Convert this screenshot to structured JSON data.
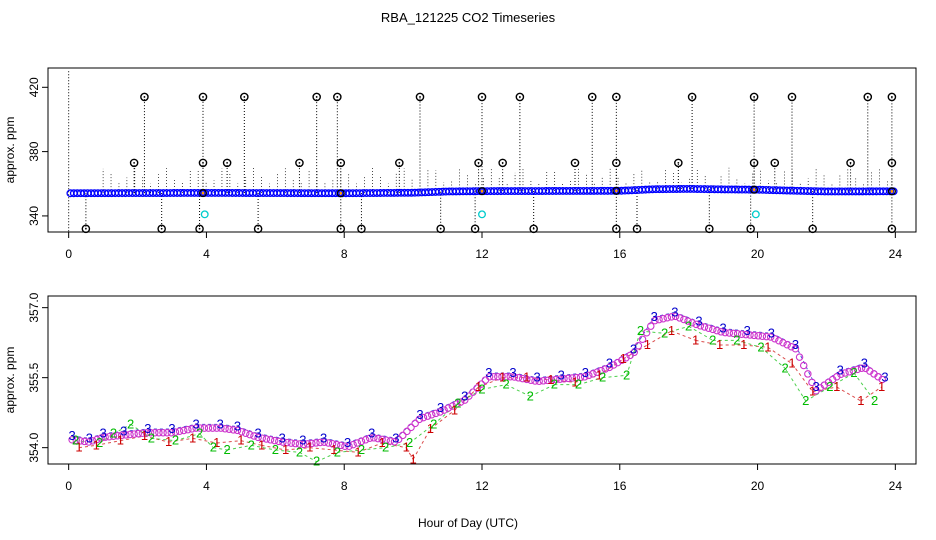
{
  "chart_data": [
    {
      "type": "scatter",
      "panel": "top",
      "title": "RBA_121225  CO2 Timeseries",
      "xlabel": "",
      "ylabel": "approx. ppm",
      "xlim": [
        -0.6,
        24.6
      ],
      "ylim": [
        330,
        432
      ],
      "xticks": [
        0,
        4,
        8,
        12,
        16,
        20,
        24
      ],
      "yticks": [
        340,
        380,
        420
      ],
      "baseline_points": {
        "x_start": 0.05,
        "x_end": 23.95,
        "step": 0.1,
        "profile_x": [
          0,
          4,
          8,
          10,
          11,
          12,
          14,
          16,
          17,
          18,
          19,
          20,
          21,
          22,
          24
        ],
        "profile_y": [
          354.1,
          354.3,
          354.1,
          354.4,
          355.2,
          355.4,
          355.5,
          355.6,
          356.6,
          356.8,
          356.5,
          356.3,
          355.7,
          355.2,
          355.3
        ],
        "color": "#0000ff"
      },
      "spike_high_x": [
        2.2,
        3.9,
        5.1,
        7.2,
        7.8,
        10.2,
        12.0,
        13.1,
        15.2,
        15.9,
        18.1,
        19.9,
        21.0,
        23.2,
        23.9
      ],
      "spike_high_y": 414,
      "spike_mid_x": [
        1.9,
        3.9,
        4.6,
        6.7,
        7.9,
        9.6,
        11.9,
        12.6,
        14.7,
        15.9,
        17.7,
        19.9,
        20.5,
        22.7,
        23.9
      ],
      "spike_mid_y": 373,
      "spike_low_x": [
        0.5,
        2.7,
        3.8,
        5.5,
        7.9,
        8.5,
        10.8,
        11.8,
        13.5,
        15.9,
        16.5,
        18.6,
        19.8,
        21.6,
        23.9
      ],
      "spike_low_y": 332,
      "cyan_points": {
        "x": [
          3.95,
          12.0,
          19.95
        ],
        "y": [
          341,
          341,
          341
        ],
        "color": "#00cccc"
      },
      "orange_points": {
        "x": [
          3.9,
          7.9,
          12.0,
          15.9,
          19.9,
          23.9
        ],
        "y": [
          354.2,
          354.1,
          355.4,
          355.6,
          356.3,
          355.3
        ]
      }
    },
    {
      "type": "scatter",
      "panel": "bottom",
      "xlabel": "Hour of Day (UTC)",
      "ylabel": "approx. ppm",
      "xlim": [
        -0.6,
        24.6
      ],
      "ylim": [
        353.65,
        357.25
      ],
      "xticks": [
        0,
        4,
        8,
        12,
        16,
        20,
        24
      ],
      "yticks": [
        354.0,
        355.5,
        357.0
      ],
      "ytick_labels": [
        "354.0",
        "355.5",
        "357.0"
      ],
      "series": [
        {
          "name": "1",
          "marker": "1",
          "color": "#cc0000",
          "offset": -0.07,
          "x": [
            0.3,
            0.8,
            1.5,
            2.2,
            2.9,
            3.6,
            4.3,
            5.0,
            5.6,
            6.3,
            7.0,
            7.7,
            8.4,
            9.1,
            9.8,
            10.0,
            10.5,
            11.2,
            11.9,
            12.6,
            13.3,
            14.0,
            14.7,
            15.4,
            16.1,
            16.8,
            17.5,
            18.2,
            18.9,
            19.6,
            20.3,
            21.0,
            21.6,
            22.3,
            23.0,
            23.6
          ],
          "y": [
            354.0,
            354.05,
            354.15,
            354.25,
            354.12,
            354.2,
            354.1,
            354.15,
            354.05,
            353.95,
            354.0,
            353.95,
            353.9,
            354.1,
            354.0,
            353.75,
            354.4,
            354.8,
            355.3,
            355.5,
            355.5,
            355.45,
            355.4,
            355.55,
            355.9,
            356.2,
            356.5,
            356.3,
            356.2,
            356.2,
            356.15,
            355.8,
            355.2,
            355.3,
            355.0,
            355.3
          ]
        },
        {
          "name": "2",
          "marker": "2",
          "color": "#00bb00",
          "offset": -0.12,
          "x": [
            0.2,
            0.9,
            1.3,
            1.8,
            2.4,
            3.1,
            3.8,
            4.2,
            4.6,
            5.3,
            6.0,
            6.7,
            7.2,
            7.8,
            8.5,
            9.2,
            9.9,
            10.6,
            11.3,
            12.0,
            12.7,
            13.4,
            14.1,
            14.8,
            15.5,
            16.2,
            16.6,
            17.3,
            18.0,
            18.7,
            19.4,
            20.1,
            20.8,
            21.4,
            22.1,
            22.8,
            23.4
          ],
          "y": [
            354.15,
            354.1,
            354.3,
            354.5,
            354.2,
            354.15,
            354.3,
            354.0,
            353.95,
            354.05,
            353.95,
            353.9,
            353.7,
            353.9,
            353.95,
            354.0,
            354.1,
            354.5,
            354.95,
            355.25,
            355.35,
            355.1,
            355.35,
            355.35,
            355.5,
            355.55,
            356.5,
            356.45,
            356.6,
            356.3,
            356.3,
            356.15,
            355.7,
            355.0,
            355.3,
            355.6,
            355.0
          ]
        },
        {
          "name": "3",
          "marker": "3",
          "color": "#0000cc",
          "offset": 0.1,
          "x": [
            0.1,
            0.6,
            1.0,
            1.6,
            2.3,
            3.0,
            3.7,
            4.4,
            4.9,
            5.5,
            6.2,
            6.8,
            7.4,
            8.1,
            8.8,
            9.5,
            10.2,
            10.8,
            11.5,
            12.2,
            12.9,
            13.6,
            14.3,
            15.0,
            15.7,
            16.4,
            17.0,
            17.6,
            18.3,
            19.0,
            19.7,
            20.4,
            21.1,
            21.7,
            22.4,
            23.1,
            23.7
          ],
          "y": [
            354.25,
            354.2,
            354.3,
            354.35,
            354.4,
            354.4,
            354.5,
            354.5,
            354.45,
            354.3,
            354.2,
            354.15,
            354.2,
            354.1,
            354.3,
            354.2,
            354.7,
            354.85,
            355.1,
            355.6,
            355.6,
            355.5,
            355.55,
            355.6,
            355.8,
            356.1,
            356.8,
            356.9,
            356.7,
            356.55,
            356.5,
            356.45,
            356.2,
            355.3,
            355.65,
            355.8,
            355.5
          ]
        }
      ]
    }
  ]
}
